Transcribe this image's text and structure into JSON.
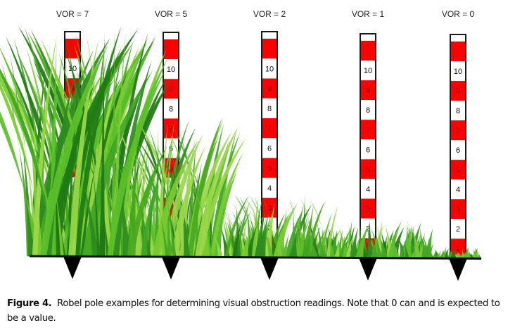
{
  "figure": {
    "poles": [
      {
        "label": "VOR = 7",
        "vor": 7
      },
      {
        "label": "VOR = 5",
        "vor": 5
      },
      {
        "label": "VOR = 2",
        "vor": 2
      },
      {
        "label": "VOR = 1",
        "vor": 1
      },
      {
        "label": "VOR = 0",
        "vor": 0
      }
    ],
    "segment_numbers": [
      "10",
      "9",
      "8",
      "7",
      "6",
      "5",
      "4",
      "3",
      "2",
      "1"
    ],
    "colors": {
      "red": "#ff0000",
      "white": "#ffffff",
      "outline": "#1a1a1a",
      "grass_dark": "#2e8b1e",
      "grass_light": "#8ed13a",
      "ground": "#111111"
    }
  },
  "caption": {
    "label": "Figure 4.",
    "text": "Robel pole examples for determining visual obstruction readings.  Note that 0 can and is expected to be a value."
  }
}
